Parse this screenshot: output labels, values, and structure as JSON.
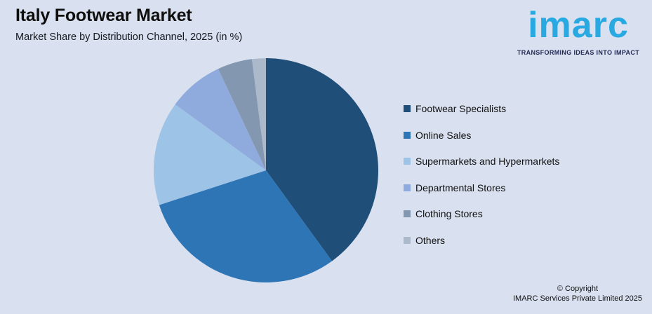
{
  "page": {
    "background_color": "#D9E0EF"
  },
  "header": {
    "title": "Italy Footwear Market",
    "subtitle": "Market Share by Distribution Channel, 2025 (in %)"
  },
  "logo": {
    "wordmark": "imarc",
    "tagline": "TRANSFORMING IDEAS INTO IMPACT",
    "brand_color": "#29A9E1",
    "tagline_color": "#232B56"
  },
  "chart_data": {
    "type": "pie",
    "title": "Italy Footwear Market",
    "subtitle": "Market Share by Distribution Channel, 2025 (in %)",
    "unit": "%",
    "start_angle_deg": 0,
    "direction": "clockwise",
    "legend_position": "right",
    "data_labels_shown": false,
    "slices": [
      {
        "label": "Footwear Specialists",
        "value": 40,
        "color": "#1F4E79"
      },
      {
        "label": "Online Sales",
        "value": 30,
        "color": "#2E75B6"
      },
      {
        "label": "Supermarkets and Hypermarkets",
        "value": 15,
        "color": "#9DC3E6"
      },
      {
        "label": "Departmental Stores",
        "value": 8,
        "color": "#8FAADC"
      },
      {
        "label": "Clothing Stores",
        "value": 5,
        "color": "#8497B0"
      },
      {
        "label": "Others",
        "value": 2,
        "color": "#ACB9CA"
      }
    ]
  },
  "footer": {
    "copyright_line1": "© Copyright",
    "copyright_line2": "IMARC Services Private Limited 2025"
  }
}
